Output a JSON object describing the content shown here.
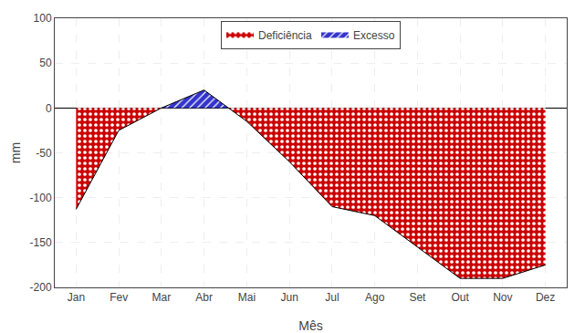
{
  "chart_data": {
    "type": "area",
    "categories": [
      "Jan",
      "Fev",
      "Mar",
      "Abr",
      "Mai",
      "Jun",
      "Jul",
      "Ago",
      "Set",
      "Out",
      "Nov",
      "Dez"
    ],
    "values": [
      -113,
      -25,
      0,
      20,
      -15,
      -60,
      -110,
      -120,
      -155,
      -190,
      -190,
      -175
    ],
    "series": [
      {
        "name": "Deficiência",
        "color": "#cc0000"
      },
      {
        "name": "Excesso",
        "color": "#3333cc"
      }
    ],
    "xlabel": "Mês",
    "ylabel": "mm",
    "ylim": [
      -200,
      100
    ],
    "yticks": [
      -200,
      -150,
      -100,
      -50,
      0,
      50,
      100
    ],
    "grid": true,
    "legend": "top"
  }
}
